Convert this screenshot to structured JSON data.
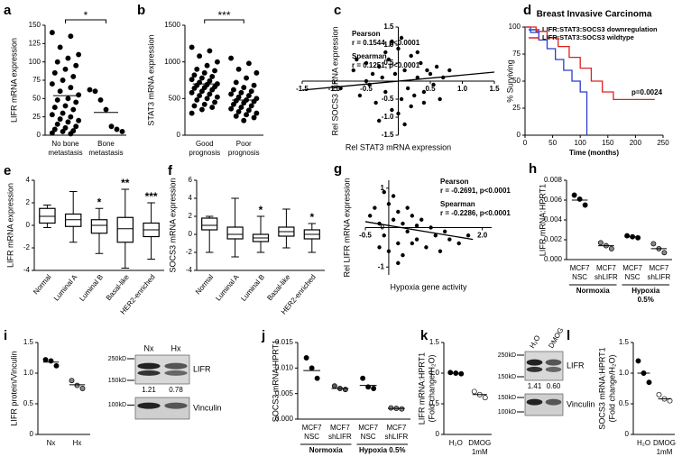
{
  "chart_data": [
    {
      "panel": "a",
      "type": "dot",
      "ylabel": "LIFR mRNA expression",
      "ylim": [
        0,
        150
      ],
      "yticks": [
        0,
        25,
        50,
        75,
        100,
        125,
        150
      ],
      "categories": [
        [
          "No bone",
          "metastasis"
        ],
        [
          "Bone",
          "metastasis"
        ]
      ],
      "values": [
        [
          140,
          135,
          120,
          110,
          105,
          100,
          95,
          90,
          85,
          80,
          75,
          70,
          65,
          60,
          55,
          50,
          48,
          45,
          40,
          38,
          35,
          30,
          28,
          25,
          22,
          20,
          18,
          15,
          12,
          10,
          8,
          6,
          5,
          3,
          2
        ],
        [
          62,
          60,
          48,
          35,
          12,
          8,
          5
        ]
      ],
      "means": [
        54,
        31
      ],
      "significance": "*"
    },
    {
      "panel": "b",
      "type": "dot",
      "ylabel": "STAT3 mRNA expression",
      "ylim": [
        0,
        1500
      ],
      "yticks": [
        0,
        500,
        1000,
        1500
      ],
      "categories": [
        [
          "Good",
          "prognosis"
        ],
        [
          "Poor",
          "prognosis"
        ]
      ],
      "values": [
        [
          1200,
          1150,
          1080,
          1000,
          950,
          900,
          880,
          850,
          820,
          800,
          780,
          760,
          740,
          720,
          700,
          690,
          680,
          660,
          650,
          640,
          620,
          600,
          580,
          560,
          540,
          520,
          500,
          480,
          450,
          420,
          400,
          380,
          350,
          300
        ],
        [
          1050,
          980,
          900,
          850,
          780,
          720,
          680,
          650,
          620,
          600,
          580,
          560,
          540,
          520,
          500,
          480,
          470,
          460,
          440,
          420,
          400,
          380,
          360,
          340,
          320,
          300,
          280,
          260,
          240,
          200
        ]
      ],
      "means": [
        700,
        480
      ],
      "significance": "***"
    },
    {
      "panel": "c",
      "type": "scatter",
      "xlabel": "Rel STAT3 mRNA expression",
      "ylabel": "Rel SOCS3 mRNA expression",
      "xlim": [
        -1.5,
        1.5
      ],
      "ylim": [
        -1.5,
        1.5
      ],
      "xticks": [
        -1.5,
        {
          "value": -1,
          "label": "-1.0"
        },
        -0.5,
        0.5,
        {
          "value": 1,
          "label": "1.0"
        },
        1.5
      ],
      "yticks": [
        {
          "value": -1.5,
          "label": "-1.5"
        },
        {
          "value": -1,
          "label": "-1.0"
        },
        -0.5,
        0.5,
        {
          "value": 1,
          "label": "1.0"
        },
        1.5
      ],
      "annotations": [
        "Pearson",
        "r = 0.1544, p<0.0001",
        "Spearman",
        "r = 0.1251, p<0.0001"
      ],
      "x": [
        -0.9,
        -0.7,
        -0.6,
        -0.5,
        -0.45,
        -0.4,
        -0.35,
        -0.3,
        -0.25,
        -0.2,
        -0.15,
        -0.1,
        -0.05,
        0,
        0.05,
        0.1,
        0.15,
        0.2,
        0.25,
        0.3,
        0.35,
        0.4,
        0.45,
        0.5,
        0.55,
        0.6,
        0.7,
        0.8,
        -0.3,
        -0.1,
        0.1,
        0.3,
        0,
        0.2,
        -0.2,
        0.05,
        -0.5,
        0.4,
        0.65,
        -0.65
      ],
      "y": [
        -0.2,
        0.3,
        -0.4,
        0.5,
        -0.1,
        0.2,
        -0.6,
        0.4,
        0.1,
        -0.3,
        0.6,
        -0.8,
        0.2,
        0.9,
        -0.5,
        0.3,
        -0.2,
        0.7,
        -0.4,
        0.1,
        0.5,
        -0.6,
        0.3,
        0.2,
        -0.1,
        0.4,
        0.1,
        0.3,
        -1.1,
        1.1,
        -1.2,
        0.8,
        -0.9,
        -0.7,
        0.8,
        1.2,
        0,
        -0.3,
        -0.5,
        0.6
      ],
      "trend": {
        "x": [
          -1.5,
          1.5
        ],
        "y": [
          -0.25,
          0.25
        ]
      }
    },
    {
      "panel": "d",
      "type": "line",
      "title": "Breast Invasive Carcinoma",
      "xlabel": "Time (months)",
      "ylabel": "% Surviving",
      "xlim": [
        0,
        250
      ],
      "xticks": [
        0,
        50,
        100,
        150,
        200,
        250
      ],
      "ylim": [
        0,
        100
      ],
      "yticks": [
        0,
        25,
        50,
        75,
        100
      ],
      "annotation": "p=0.0024",
      "series": [
        {
          "name": "LIFR:STAT3:SOCS3 downregulation",
          "color": "#2b3ec8",
          "x": [
            0,
            10,
            10,
            25,
            25,
            40,
            40,
            55,
            55,
            70,
            70,
            85,
            85,
            100,
            100,
            112,
            112
          ],
          "y": [
            100,
            100,
            95,
            95,
            88,
            88,
            80,
            80,
            70,
            70,
            60,
            60,
            50,
            50,
            40,
            40,
            0
          ]
        },
        {
          "name": "LIFR:STAT3:SOCS3 wildtype",
          "color": "#e02020",
          "x": [
            0,
            20,
            20,
            40,
            40,
            60,
            60,
            80,
            80,
            100,
            100,
            120,
            120,
            140,
            140,
            160,
            160,
            235
          ],
          "y": [
            100,
            100,
            96,
            96,
            90,
            90,
            82,
            82,
            72,
            72,
            62,
            62,
            50,
            50,
            40,
            40,
            33,
            33
          ]
        }
      ]
    },
    {
      "panel": "e",
      "type": "box",
      "ylabel": "LIFR mRNA expression",
      "ylim": [
        -4,
        4
      ],
      "yticks": [
        -4,
        -2,
        0,
        2,
        4
      ],
      "categories": [
        "Normal",
        "Luminal A",
        "Luminal B",
        "Basal-like",
        "HER2-enriched"
      ],
      "boxes": [
        [
          -0.2,
          0.2,
          0.8,
          1.5,
          1.8
        ],
        [
          -1.5,
          -0.1,
          0.5,
          1,
          3
        ],
        [
          -2.5,
          -0.7,
          0,
          0.5,
          1.5
        ],
        [
          -3.8,
          -1.5,
          -0.3,
          0.7,
          3.2
        ],
        [
          -3,
          -1,
          -0.4,
          0.2,
          2
        ]
      ],
      "stars": [
        null,
        null,
        "*",
        "**",
        "***"
      ]
    },
    {
      "panel": "f",
      "type": "box",
      "ylabel": "SOCS3 mRNA expression",
      "ylim": [
        -4,
        6
      ],
      "yticks": [
        -4,
        -2,
        0,
        2,
        4,
        6
      ],
      "categories": [
        "Normal",
        "Luminal A",
        "Luminal B",
        "Basal-like",
        "HER2-enriched"
      ],
      "boxes": [
        [
          -2,
          0.5,
          1,
          1.8,
          2
        ],
        [
          -2.5,
          -0.5,
          0,
          0.8,
          4
        ],
        [
          -2,
          -0.8,
          -0.4,
          0,
          2
        ],
        [
          -1.5,
          -0.2,
          0.3,
          0.8,
          2.8
        ],
        [
          -2,
          -0.5,
          0,
          0.5,
          1.2
        ]
      ],
      "stars": [
        null,
        null,
        "*",
        null,
        "*"
      ]
    },
    {
      "panel": "g",
      "type": "scatter",
      "xlabel": "Hypoxia gene activity",
      "ylabel": "Rel LIFR mRNA expression",
      "xlim": [
        -0.5,
        2.2
      ],
      "ylim": [
        -1.2,
        1.2
      ],
      "xticks": [
        -0.5,
        {
          "value": 2,
          "label": "2.0"
        }
      ],
      "yticks": [
        1,
        0,
        -1
      ],
      "annotations": [
        "Pearson",
        "r = -0.2691, p<0.0001",
        "Spearman",
        "r = -0.2286, p<0.0001"
      ],
      "x": [
        -0.4,
        -0.3,
        -0.2,
        -0.1,
        0,
        0.1,
        0.2,
        0.3,
        0.4,
        0.5,
        0.6,
        0.7,
        0.8,
        0.9,
        1.0,
        1.1,
        1.2,
        1.3,
        1.5,
        1.7,
        -0.2,
        0,
        0.1,
        0.2,
        0.3,
        0.4,
        -0.1,
        0.5,
        0.6,
        0.2
      ],
      "y": [
        0.3,
        0.5,
        0.1,
        -0.2,
        0.6,
        0.2,
        -0.4,
        0.1,
        -0.1,
        0.3,
        -0.3,
        0.2,
        -0.5,
        0,
        -0.2,
        -0.6,
        -0.1,
        -0.3,
        -0.4,
        -0.2,
        -0.5,
        -0.6,
        0.8,
        0.4,
        -0.7,
        0.5,
        0.9,
        -0.4,
        0.05,
        -0.9
      ],
      "trend": {
        "x": [
          -0.5,
          1.8
        ],
        "y": [
          0.15,
          -0.3
        ]
      }
    },
    {
      "panel": "h",
      "type": "dot",
      "ylabel": "LIFR mRNA:HPRT1",
      "ylim": [
        0,
        0.008
      ],
      "yticks": [
        {
          "value": 0,
          "label": "0.000"
        },
        {
          "value": 0.002,
          "label": "0.002"
        },
        {
          "value": 0.004,
          "label": "0.004"
        },
        {
          "value": 0.006,
          "label": "0.006"
        },
        {
          "value": 0.008,
          "label": "0.008"
        }
      ],
      "categories": [
        [
          "MCF7",
          "NSC"
        ],
        [
          "MCF7",
          "shLIFR"
        ],
        [
          "MCF7",
          "NSC"
        ],
        [
          "MCF7",
          "shLIFR"
        ]
      ],
      "groups": [
        [
          "Normoxia"
        ],
        [
          "Hypoxia",
          "0.5%"
        ]
      ],
      "colors": [
        "#000000",
        "#888888",
        "#000000",
        "#888888"
      ],
      "values": [
        [
          0.0065,
          0.0061,
          0.0055
        ],
        [
          0.0017,
          0.0014,
          0.0011
        ],
        [
          0.0024,
          0.0023,
          0.0022
        ],
        [
          0.0016,
          0.0011,
          0.0007
        ]
      ],
      "means": [
        0.006,
        0.0014,
        0.0023,
        0.0011
      ]
    },
    {
      "panel": "i",
      "type": "dot",
      "ylabel": "LIFR protein/Vinculin",
      "ylim": [
        0,
        1.5
      ],
      "yticks": [
        0,
        0.5,
        {
          "value": 1,
          "label": "1.0"
        },
        1.5
      ],
      "categories": [
        "Nx",
        "Hx"
      ],
      "colors": [
        "#000000",
        "#888888"
      ],
      "values": [
        [
          1.22,
          1.2,
          1.12
        ],
        [
          0.88,
          0.8,
          0.75
        ]
      ],
      "means": [
        1.18,
        0.81
      ],
      "blot": {
        "lanes": [
          "Nx",
          "Hx"
        ],
        "lane_label_rotated": false,
        "panels": [
          {
            "name": "LIFR",
            "markers": [
              "250kD",
              "150kD"
            ]
          },
          {
            "name": "Vinculin",
            "markers": [
              "100kD"
            ]
          }
        ],
        "quant": [
          "1.21",
          "0.78"
        ]
      }
    },
    {
      "panel": "j",
      "type": "dot",
      "ylabel": "SOCS3 mRNA:HPRT1",
      "ylim": [
        0,
        0.015
      ],
      "yticks": [
        {
          "value": 0,
          "label": "0.000"
        },
        {
          "value": 0.005,
          "label": "0.005"
        },
        {
          "value": 0.01,
          "label": "0.010"
        },
        {
          "value": 0.015,
          "label": "0.015"
        }
      ],
      "categories": [
        [
          "MCF7",
          "NSC"
        ],
        [
          "MCF7",
          "shLIFR"
        ],
        [
          "MCF7",
          "NSC"
        ],
        [
          "MCF7",
          "shLIFR"
        ]
      ],
      "groups": [
        [
          "Normoxia"
        ],
        [
          "Hypoxia 0.5%"
        ]
      ],
      "colors": [
        "#000000",
        "#555555",
        "#000000",
        "#888888"
      ],
      "values": [
        [
          0.012,
          0.01,
          0.008
        ],
        [
          0.0065,
          0.006,
          0.0058
        ],
        [
          0.008,
          0.0063,
          0.006
        ],
        [
          0.0022,
          0.0021,
          0.002
        ]
      ],
      "means": [
        0.0095,
        0.006,
        0.0066,
        0.0021
      ]
    },
    {
      "panel": "k",
      "type": "dot",
      "ylabel": [
        "LIFR mRNA:HPRT1",
        "(Fold change/H₂O)"
      ],
      "ylim": [
        0,
        1.5
      ],
      "yticks": [
        0,
        0.5,
        {
          "value": 1,
          "label": "1.0"
        },
        1.5
      ],
      "categories": [
        [
          "H₂O"
        ],
        [
          "DMOG",
          "1mM"
        ]
      ],
      "colors": [
        "#000000",
        "#ffffff"
      ],
      "values": [
        [
          1.01,
          1.0,
          0.99
        ],
        [
          0.7,
          0.65,
          0.6
        ]
      ],
      "means": [
        1.0,
        0.65
      ],
      "blot": {
        "lanes": [
          "H₂O",
          "DMOG"
        ],
        "lane_label_rotated": true,
        "panels": [
          {
            "name": "LIFR",
            "markers": [
              "250kD",
              "150kD"
            ]
          },
          {
            "name": "Vinculin",
            "markers": [
              "150kD",
              "100kD"
            ]
          }
        ],
        "quant": [
          "1.41",
          "0.60"
        ]
      }
    },
    {
      "panel": "l",
      "type": "dot",
      "ylabel": [
        "SOCS3 mRNA:HPRT1",
        "(Fold change/H₂O)"
      ],
      "ylim": [
        0,
        1.5
      ],
      "yticks": [
        0,
        0.5,
        {
          "value": 1,
          "label": "1.0"
        },
        1.5
      ],
      "categories": [
        [
          "H₂O"
        ],
        [
          "DMOG",
          "1mM"
        ]
      ],
      "colors": [
        "#000000",
        "#ffffff"
      ],
      "values": [
        [
          1.2,
          1.0,
          0.85
        ],
        [
          0.65,
          0.58,
          0.55
        ]
      ],
      "means": [
        1.0,
        0.58
      ]
    }
  ]
}
